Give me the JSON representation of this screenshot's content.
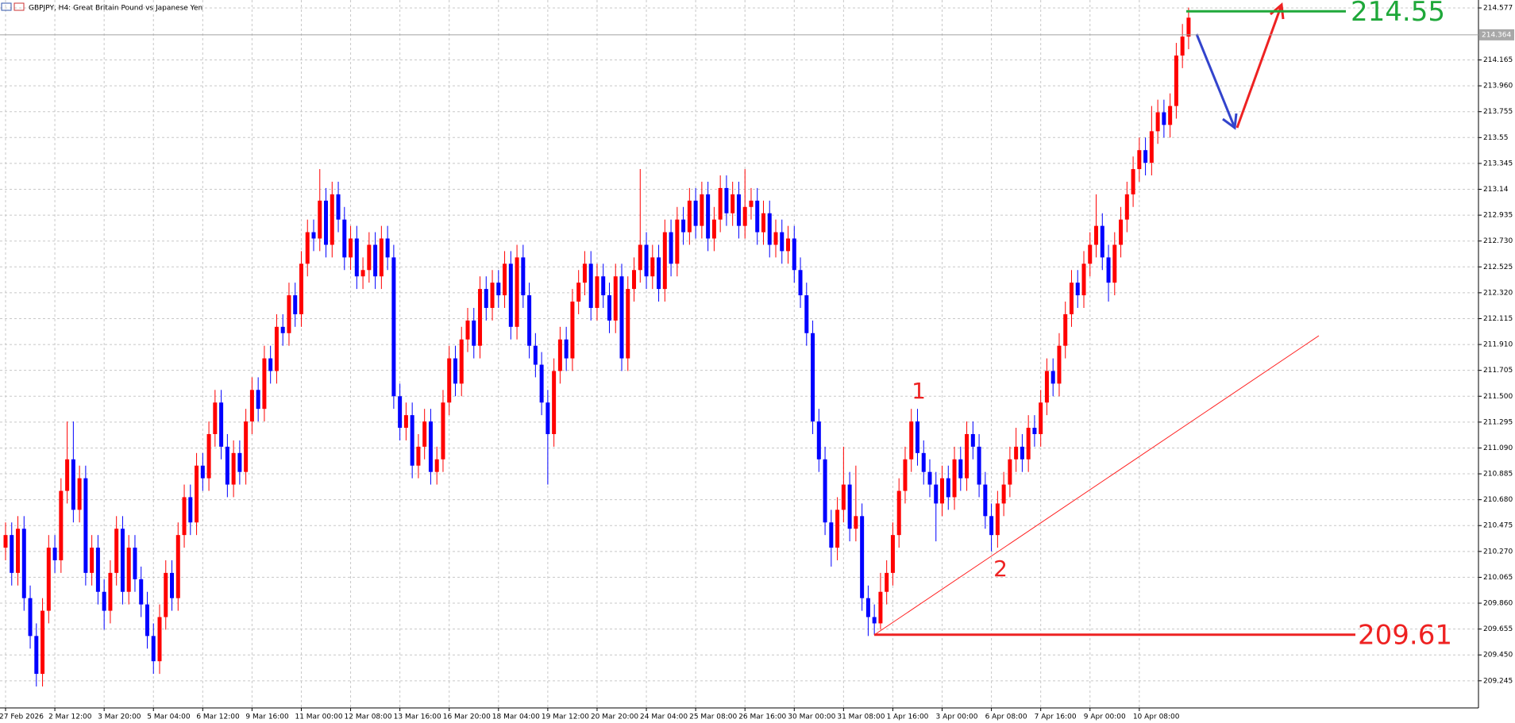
{
  "chart_data": {
    "type": "candlestick",
    "title": "GBPJPY, H4:  Great Britain Pound vs Japanese Yen",
    "up_color": "#ff0000",
    "down_color": "#0000ff",
    "grid": true,
    "ylim": [
      209.03,
      214.64
    ],
    "yticks": [
      214.577,
      214.165,
      {
        "value": 213.96,
        "label": "213.960"
      },
      213.755,
      213.55,
      213.345,
      213.14,
      212.935,
      {
        "value": 212.73,
        "label": "212.730"
      },
      212.525,
      {
        "value": 212.32,
        "label": "212.320"
      },
      212.115,
      {
        "value": 211.91,
        "label": "211.910"
      },
      211.705,
      {
        "value": 211.5,
        "label": "211.500"
      },
      211.295,
      {
        "value": 211.09,
        "label": "211.090"
      },
      210.885,
      {
        "value": 210.68,
        "label": "210.680"
      },
      210.475,
      {
        "value": 210.27,
        "label": "210.270"
      },
      210.065,
      {
        "value": 209.86,
        "label": "209.860"
      },
      209.655,
      {
        "value": 209.45,
        "label": "209.450"
      },
      209.245
    ],
    "current_price": 214.364,
    "levels": [
      {
        "value": 214.55,
        "color": "#1fa83a"
      },
      {
        "value": 209.61,
        "color": "#ee2222"
      }
    ],
    "annotations": [
      "1",
      "2"
    ],
    "categories": [
      "27 Feb 2026",
      null,
      null,
      null,
      null,
      null,
      null,
      null,
      "2 Mar 12:00",
      null,
      null,
      null,
      null,
      null,
      null,
      null,
      "3 Mar 20:00",
      null,
      null,
      null,
      null,
      null,
      null,
      null,
      "5 Mar 04:00",
      null,
      null,
      null,
      null,
      null,
      null,
      null,
      "6 Mar 12:00",
      null,
      null,
      null,
      null,
      null,
      null,
      null,
      "9 Mar 16:00",
      null,
      null,
      null,
      null,
      null,
      null,
      null,
      "11 Mar 00:00",
      null,
      null,
      null,
      null,
      null,
      null,
      null,
      "12 Mar 08:00",
      null,
      null,
      null,
      null,
      null,
      null,
      null,
      "13 Mar 16:00",
      null,
      null,
      null,
      null,
      null,
      null,
      null,
      "16 Mar 20:00",
      null,
      null,
      null,
      null,
      null,
      null,
      null,
      "18 Mar 04:00",
      null,
      null,
      null,
      null,
      null,
      null,
      null,
      "19 Mar 12:00",
      null,
      null,
      null,
      null,
      null,
      null,
      null,
      "20 Mar 20:00",
      null,
      null,
      null,
      null,
      null,
      null,
      null,
      "24 Mar 04:00",
      null,
      null,
      null,
      null,
      null,
      null,
      null,
      "25 Mar 08:00",
      null,
      null,
      null,
      null,
      null,
      null,
      null,
      "26 Mar 16:00",
      null,
      null,
      null,
      null,
      null,
      null,
      null,
      "30 Mar 00:00",
      null,
      null,
      null,
      null,
      null,
      null,
      null,
      "31 Mar 08:00",
      null,
      null,
      null,
      null,
      null,
      null,
      null,
      "1 Apr 16:00",
      null,
      null,
      null,
      null,
      null,
      null,
      null,
      "3 Apr 00:00",
      null,
      null,
      null,
      null,
      null,
      null,
      null,
      "6 Apr 08:00",
      null,
      null,
      null,
      null,
      null,
      null,
      null,
      "7 Apr 16:00",
      null,
      null,
      null,
      null,
      null,
      null,
      null,
      "9 Apr 00:00",
      null,
      null,
      null,
      null,
      null,
      null,
      null,
      "10 Apr 08:00",
      null,
      null,
      null,
      null,
      null,
      null,
      null,
      null
    ],
    "ohlc": [
      [
        210.3,
        210.5,
        210.2,
        210.4
      ],
      [
        210.4,
        210.5,
        210.0,
        210.1
      ],
      [
        210.1,
        210.55,
        210.0,
        210.45
      ],
      [
        210.45,
        210.55,
        209.8,
        209.9
      ],
      [
        209.9,
        210.0,
        209.5,
        209.6
      ],
      [
        209.6,
        209.7,
        209.2,
        209.3
      ],
      [
        209.3,
        209.9,
        209.2,
        209.8
      ],
      [
        209.8,
        210.4,
        209.7,
        210.3
      ],
      [
        210.3,
        210.4,
        210.1,
        210.2
      ],
      [
        210.2,
        210.85,
        210.1,
        210.75
      ],
      [
        210.75,
        211.3,
        210.65,
        211.0
      ],
      [
        211.0,
        211.3,
        210.5,
        210.6
      ],
      [
        210.6,
        210.95,
        210.5,
        210.85
      ],
      [
        210.85,
        210.95,
        210.0,
        210.1
      ],
      [
        210.1,
        210.4,
        210.0,
        210.3
      ],
      [
        210.3,
        210.4,
        209.85,
        209.95
      ],
      [
        209.95,
        210.05,
        209.65,
        209.8
      ],
      [
        209.8,
        210.2,
        209.7,
        210.1
      ],
      [
        210.1,
        210.55,
        210.0,
        210.45
      ],
      [
        210.45,
        210.55,
        209.85,
        209.95
      ],
      [
        209.95,
        210.4,
        209.85,
        210.3
      ],
      [
        210.3,
        210.4,
        209.95,
        210.05
      ],
      [
        210.05,
        210.15,
        209.75,
        209.85
      ],
      [
        209.85,
        209.95,
        209.5,
        209.6
      ],
      [
        209.6,
        209.7,
        209.3,
        209.4
      ],
      [
        209.4,
        209.85,
        209.3,
        209.75
      ],
      [
        209.75,
        210.2,
        209.65,
        210.1
      ],
      [
        210.1,
        210.2,
        209.8,
        209.9
      ],
      [
        209.9,
        210.5,
        209.8,
        210.4
      ],
      [
        210.4,
        210.8,
        210.3,
        210.7
      ],
      [
        210.7,
        210.8,
        210.4,
        210.5
      ],
      [
        210.5,
        211.05,
        210.4,
        210.95
      ],
      [
        210.95,
        211.05,
        210.75,
        210.85
      ],
      [
        210.85,
        211.3,
        210.75,
        211.2
      ],
      [
        211.2,
        211.55,
        211.1,
        211.45
      ],
      [
        211.45,
        211.55,
        211.0,
        211.1
      ],
      [
        211.1,
        211.2,
        210.7,
        210.8
      ],
      [
        210.8,
        211.15,
        210.7,
        211.05
      ],
      [
        211.05,
        211.15,
        210.8,
        210.9
      ],
      [
        210.9,
        211.4,
        210.8,
        211.3
      ],
      [
        211.3,
        211.65,
        211.2,
        211.55
      ],
      [
        211.55,
        211.65,
        211.3,
        211.4
      ],
      [
        211.4,
        211.9,
        211.3,
        211.8
      ],
      [
        211.8,
        211.9,
        211.6,
        211.7
      ],
      [
        211.7,
        212.15,
        211.6,
        212.05
      ],
      [
        212.05,
        212.15,
        211.9,
        212.0
      ],
      [
        212.0,
        212.4,
        211.9,
        212.3
      ],
      [
        212.3,
        212.4,
        212.05,
        212.15
      ],
      [
        212.15,
        212.65,
        212.05,
        212.55
      ],
      [
        212.55,
        212.9,
        212.45,
        212.8
      ],
      [
        212.8,
        212.9,
        212.65,
        212.75
      ],
      [
        212.75,
        213.3,
        212.65,
        213.05
      ],
      [
        213.05,
        213.15,
        212.6,
        212.7
      ],
      [
        212.7,
        213.2,
        212.6,
        213.1
      ],
      [
        213.1,
        213.2,
        212.8,
        212.9
      ],
      [
        212.9,
        213.0,
        212.5,
        212.6
      ],
      [
        212.6,
        212.85,
        212.5,
        212.75
      ],
      [
        212.75,
        212.85,
        212.35,
        212.45
      ],
      [
        212.45,
        212.6,
        212.35,
        212.5
      ],
      [
        212.5,
        212.8,
        212.4,
        212.7
      ],
      [
        212.7,
        212.8,
        212.35,
        212.45
      ],
      [
        212.45,
        212.85,
        212.35,
        212.75
      ],
      [
        212.75,
        212.85,
        212.5,
        212.6
      ],
      [
        212.6,
        212.7,
        211.4,
        211.5
      ],
      [
        211.5,
        211.6,
        211.15,
        211.25
      ],
      [
        211.25,
        211.45,
        211.15,
        211.35
      ],
      [
        211.35,
        211.45,
        210.85,
        210.95
      ],
      [
        210.95,
        211.2,
        210.85,
        211.1
      ],
      [
        211.1,
        211.4,
        211.0,
        211.3
      ],
      [
        211.3,
        211.4,
        210.8,
        210.9
      ],
      [
        210.9,
        211.1,
        210.8,
        211.0
      ],
      [
        211.0,
        211.55,
        210.9,
        211.45
      ],
      [
        211.45,
        211.9,
        211.35,
        211.8
      ],
      [
        211.8,
        211.9,
        211.5,
        211.6
      ],
      [
        211.6,
        212.05,
        211.5,
        211.95
      ],
      [
        211.95,
        212.2,
        211.85,
        212.1
      ],
      [
        212.1,
        212.2,
        211.8,
        211.9
      ],
      [
        211.9,
        212.45,
        211.8,
        212.35
      ],
      [
        212.35,
        212.45,
        212.1,
        212.2
      ],
      [
        212.2,
        212.5,
        212.1,
        212.4
      ],
      [
        212.4,
        212.5,
        212.2,
        212.3
      ],
      [
        212.3,
        212.65,
        212.2,
        212.55
      ],
      [
        212.55,
        212.65,
        211.95,
        212.05
      ],
      [
        212.05,
        212.7,
        211.95,
        212.6
      ],
      [
        212.6,
        212.7,
        212.2,
        212.3
      ],
      [
        212.3,
        212.4,
        211.8,
        211.9
      ],
      [
        211.9,
        212.0,
        211.65,
        211.75
      ],
      [
        211.75,
        211.85,
        211.35,
        211.45
      ],
      [
        211.45,
        211.55,
        210.8,
        211.2
      ],
      [
        211.2,
        211.8,
        211.1,
        211.7
      ],
      [
        211.7,
        212.05,
        211.6,
        211.95
      ],
      [
        211.95,
        212.05,
        211.7,
        211.8
      ],
      [
        211.8,
        212.35,
        211.7,
        212.25
      ],
      [
        212.25,
        212.5,
        212.15,
        212.4
      ],
      [
        212.4,
        212.65,
        212.3,
        212.55
      ],
      [
        212.55,
        212.65,
        212.1,
        212.2
      ],
      [
        212.2,
        212.55,
        212.1,
        212.45
      ],
      [
        212.45,
        212.55,
        212.2,
        212.3
      ],
      [
        212.3,
        212.4,
        212.0,
        212.1
      ],
      [
        212.1,
        212.55,
        212.0,
        212.45
      ],
      [
        212.45,
        212.55,
        211.7,
        211.8
      ],
      [
        211.8,
        212.45,
        211.7,
        212.35
      ],
      [
        212.35,
        212.6,
        212.25,
        212.5
      ],
      [
        212.5,
        213.3,
        212.4,
        212.7
      ],
      [
        212.7,
        212.8,
        212.35,
        212.45
      ],
      [
        212.45,
        212.7,
        212.35,
        212.6
      ],
      [
        212.6,
        212.7,
        212.25,
        212.35
      ],
      [
        212.35,
        212.9,
        212.25,
        212.8
      ],
      [
        212.8,
        212.9,
        212.45,
        212.55
      ],
      [
        212.55,
        213.0,
        212.45,
        212.9
      ],
      [
        212.9,
        213.0,
        212.7,
        212.8
      ],
      [
        212.8,
        213.15,
        212.7,
        213.05
      ],
      [
        213.05,
        213.15,
        212.75,
        212.85
      ],
      [
        212.85,
        213.2,
        212.75,
        213.1
      ],
      [
        213.1,
        213.2,
        212.65,
        212.75
      ],
      [
        212.75,
        213.0,
        212.65,
        212.9
      ],
      [
        212.9,
        213.25,
        212.8,
        213.15
      ],
      [
        213.15,
        213.25,
        212.85,
        212.95
      ],
      [
        212.95,
        213.2,
        212.85,
        213.1
      ],
      [
        213.1,
        213.2,
        212.75,
        212.85
      ],
      [
        212.85,
        213.3,
        212.75,
        213.0
      ],
      [
        213.0,
        213.15,
        212.9,
        213.05
      ],
      [
        213.05,
        213.15,
        212.7,
        212.8
      ],
      [
        212.8,
        213.05,
        212.7,
        212.95
      ],
      [
        212.95,
        213.05,
        212.6,
        212.7
      ],
      [
        212.7,
        212.9,
        212.6,
        212.8
      ],
      [
        212.8,
        212.9,
        212.55,
        212.65
      ],
      [
        212.65,
        212.85,
        212.55,
        212.75
      ],
      [
        212.75,
        212.85,
        212.4,
        212.5
      ],
      [
        212.5,
        212.6,
        212.2,
        212.3
      ],
      [
        212.3,
        212.4,
        211.9,
        212.0
      ],
      [
        212.0,
        212.1,
        211.2,
        211.3
      ],
      [
        211.3,
        211.4,
        210.9,
        211.0
      ],
      [
        211.0,
        211.1,
        210.4,
        210.5
      ],
      [
        210.5,
        210.6,
        210.15,
        210.3
      ],
      [
        210.3,
        210.7,
        210.2,
        210.6
      ],
      [
        210.6,
        211.1,
        210.5,
        210.8
      ],
      [
        210.8,
        210.9,
        210.35,
        210.45
      ],
      [
        210.45,
        210.95,
        210.35,
        210.55
      ],
      [
        210.55,
        210.65,
        209.8,
        209.9
      ],
      [
        209.9,
        210.0,
        209.6,
        209.75
      ],
      [
        209.75,
        209.85,
        209.61,
        209.7
      ],
      [
        209.7,
        210.1,
        209.65,
        209.95
      ],
      [
        209.95,
        210.2,
        209.85,
        210.1
      ],
      [
        210.1,
        210.5,
        210.0,
        210.4
      ],
      [
        210.4,
        210.85,
        210.3,
        210.75
      ],
      [
        210.75,
        211.1,
        210.65,
        211.0
      ],
      [
        211.0,
        211.4,
        210.9,
        211.3
      ],
      [
        211.3,
        211.4,
        210.95,
        211.05
      ],
      [
        211.05,
        211.15,
        210.8,
        210.9
      ],
      [
        210.9,
        211.0,
        210.7,
        210.8
      ],
      [
        210.8,
        210.9,
        210.35,
        210.65
      ],
      [
        210.65,
        210.95,
        210.55,
        210.85
      ],
      [
        210.85,
        210.95,
        210.6,
        210.7
      ],
      [
        210.7,
        211.1,
        210.6,
        211.0
      ],
      [
        211.0,
        211.1,
        210.75,
        210.85
      ],
      [
        210.85,
        211.3,
        210.75,
        211.2
      ],
      [
        211.2,
        211.3,
        211.0,
        211.1
      ],
      [
        211.1,
        211.2,
        210.7,
        210.8
      ],
      [
        210.8,
        210.9,
        210.45,
        210.55
      ],
      [
        210.55,
        210.65,
        210.27,
        210.4
      ],
      [
        210.4,
        210.75,
        210.3,
        210.65
      ],
      [
        210.65,
        210.9,
        210.55,
        210.8
      ],
      [
        210.8,
        211.1,
        210.7,
        211.0
      ],
      [
        211.0,
        211.25,
        210.9,
        211.1
      ],
      [
        211.1,
        211.2,
        210.9,
        211.0
      ],
      [
        211.0,
        211.35,
        210.9,
        211.25
      ],
      [
        211.25,
        211.35,
        211.1,
        211.2
      ],
      [
        211.2,
        211.55,
        211.1,
        211.45
      ],
      [
        211.45,
        211.8,
        211.35,
        211.7
      ],
      [
        211.7,
        211.8,
        211.5,
        211.6
      ],
      [
        211.6,
        212.0,
        211.5,
        211.9
      ],
      [
        211.9,
        212.25,
        211.8,
        212.15
      ],
      [
        212.15,
        212.5,
        212.05,
        212.4
      ],
      [
        212.4,
        212.5,
        212.2,
        212.3
      ],
      [
        212.3,
        212.65,
        212.2,
        212.55
      ],
      [
        212.55,
        212.8,
        212.45,
        212.7
      ],
      [
        212.7,
        213.1,
        212.6,
        212.85
      ],
      [
        212.85,
        212.95,
        212.5,
        212.6
      ],
      [
        212.6,
        212.7,
        212.25,
        212.4
      ],
      [
        212.4,
        212.8,
        212.3,
        212.7
      ],
      [
        212.7,
        213.0,
        212.6,
        212.9
      ],
      [
        212.9,
        213.2,
        212.8,
        213.1
      ],
      [
        213.1,
        213.4,
        213.0,
        213.3
      ],
      [
        213.3,
        213.55,
        213.2,
        213.45
      ],
      [
        213.45,
        213.55,
        213.25,
        213.35
      ],
      [
        213.35,
        213.8,
        213.25,
        213.6
      ],
      [
        213.6,
        213.85,
        213.5,
        213.75
      ],
      [
        213.75,
        213.85,
        213.55,
        213.65
      ],
      [
        213.65,
        213.9,
        213.55,
        213.8
      ],
      [
        213.8,
        214.3,
        213.7,
        214.2
      ],
      [
        214.2,
        214.45,
        214.1,
        214.35
      ],
      [
        214.35,
        214.58,
        214.25,
        214.5
      ]
    ]
  }
}
